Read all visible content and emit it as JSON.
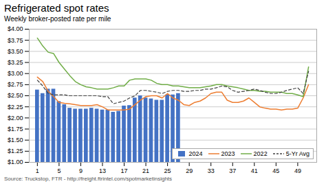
{
  "chart_data": {
    "type": "bar",
    "title": "Refrigerated spot rates",
    "subtitle": "Weekly broker-posted rate per mile",
    "source": "Source: Truckstop, FTR - http://freight.ftrintel.com/spotmarketinsights",
    "x": [
      1,
      2,
      3,
      4,
      5,
      6,
      7,
      8,
      9,
      10,
      11,
      12,
      13,
      14,
      15,
      16,
      17,
      18,
      19,
      20,
      21,
      22,
      23,
      24,
      25,
      26,
      27,
      28,
      29,
      30,
      31,
      32,
      33,
      34,
      35,
      36,
      37,
      38,
      39,
      40,
      41,
      42,
      43,
      44,
      45,
      46,
      47,
      48,
      49,
      50,
      51
    ],
    "series": [
      {
        "name": "2024",
        "type": "bar",
        "color": "#4472C4",
        "values": [
          2.63,
          2.55,
          2.65,
          2.65,
          2.37,
          2.3,
          2.22,
          2.2,
          2.2,
          2.2,
          2.22,
          2.2,
          2.18,
          2.18,
          2.13,
          2.15,
          2.27,
          2.28,
          2.45,
          2.5,
          2.45,
          2.43,
          2.4,
          2.4,
          2.52,
          2.52,
          2.55,
          null,
          null,
          null,
          null,
          null,
          null,
          null,
          null,
          null,
          null,
          null,
          null,
          null,
          null,
          null,
          null,
          null,
          null,
          null,
          null,
          null,
          null,
          null,
          null
        ]
      },
      {
        "name": "2023",
        "type": "line",
        "color": "#ED7D31",
        "line_style": "solid",
        "values": [
          2.92,
          2.82,
          2.6,
          2.48,
          2.35,
          2.33,
          2.32,
          2.3,
          2.28,
          2.28,
          2.28,
          2.3,
          2.25,
          2.18,
          2.18,
          2.18,
          2.18,
          2.2,
          2.3,
          2.4,
          2.48,
          2.5,
          2.5,
          2.45,
          2.55,
          2.45,
          2.4,
          2.3,
          2.28,
          2.35,
          2.38,
          2.45,
          2.55,
          2.58,
          2.58,
          2.4,
          2.35,
          2.35,
          2.38,
          2.45,
          2.35,
          2.25,
          2.22,
          2.2,
          2.2,
          2.18,
          2.2,
          2.2,
          2.22,
          2.45,
          2.75
        ]
      },
      {
        "name": "2022",
        "type": "line",
        "color": "#70AD47",
        "line_style": "solid",
        "values": [
          3.8,
          3.62,
          3.48,
          3.45,
          3.25,
          3.1,
          2.95,
          2.82,
          2.75,
          2.7,
          2.68,
          2.65,
          2.65,
          2.65,
          2.68,
          2.72,
          2.72,
          2.85,
          2.88,
          2.88,
          2.88,
          2.85,
          2.78,
          2.75,
          2.75,
          2.72,
          2.72,
          2.7,
          2.68,
          2.68,
          2.68,
          2.7,
          2.72,
          2.75,
          2.75,
          2.72,
          2.7,
          2.68,
          2.65,
          2.62,
          2.62,
          2.6,
          2.6,
          2.58,
          2.58,
          2.58,
          2.55,
          2.55,
          2.52,
          2.48,
          3.15
        ]
      },
      {
        "name": "5-Yr Avg",
        "type": "line",
        "color": "#404040",
        "line_style": "dashed",
        "values": [
          2.85,
          2.72,
          2.55,
          2.52,
          2.52,
          2.52,
          2.5,
          2.5,
          2.5,
          2.5,
          2.5,
          2.5,
          2.48,
          2.48,
          2.32,
          2.35,
          2.38,
          2.45,
          2.5,
          2.62,
          2.62,
          2.6,
          2.58,
          2.55,
          2.6,
          2.62,
          2.62,
          2.6,
          2.6,
          2.62,
          2.62,
          2.65,
          2.65,
          2.68,
          2.72,
          2.7,
          2.62,
          2.58,
          2.6,
          2.62,
          2.65,
          2.62,
          2.58,
          2.55,
          2.55,
          2.58,
          2.62,
          2.65,
          2.68,
          2.55,
          3.05
        ]
      }
    ],
    "xlim": [
      -0.5,
      52.5
    ],
    "xticks": [
      1,
      5,
      9,
      13,
      17,
      21,
      25,
      29,
      33,
      37,
      41,
      45,
      49
    ],
    "ylim": [
      1.0,
      4.0
    ],
    "yticks": [
      {
        "value": 1.0,
        "label": "$1.00"
      },
      {
        "value": 1.25,
        "label": "$1.25"
      },
      {
        "value": 1.5,
        "label": "$1.50"
      },
      {
        "value": 1.75,
        "label": "$1.75"
      },
      {
        "value": 2.0,
        "label": "$2.00"
      },
      {
        "value": 2.25,
        "label": "$2.25"
      },
      {
        "value": 2.5,
        "label": "$2.50"
      },
      {
        "value": 2.75,
        "label": "$2.75"
      },
      {
        "value": 3.0,
        "label": "$3.00"
      },
      {
        "value": 3.25,
        "label": "$3.25"
      },
      {
        "value": 3.5,
        "label": "$3.50"
      },
      {
        "value": 3.75,
        "label": "$3.75"
      },
      {
        "value": 4.0,
        "label": "$4.00"
      }
    ],
    "grid": true,
    "legend": "lower right"
  }
}
